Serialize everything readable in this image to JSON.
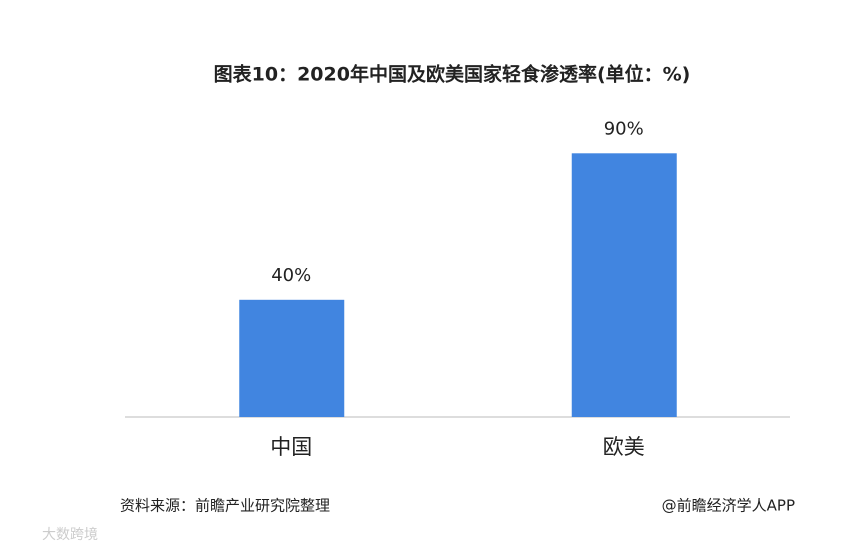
{
  "chart_data": {
    "type": "bar",
    "title": "图表10：2020年中国及欧美国家轻食渗透率(单位：%)",
    "categories": [
      "中国",
      "欧美"
    ],
    "values": [
      40,
      90
    ],
    "value_labels": [
      "40%",
      "90%"
    ],
    "color": "#4185e0",
    "ylim": [
      0,
      100
    ],
    "source": "资料来源：前瞻产业研究院整理",
    "credit": "@前瞻经济学人APP",
    "watermark": "大数跨境"
  }
}
